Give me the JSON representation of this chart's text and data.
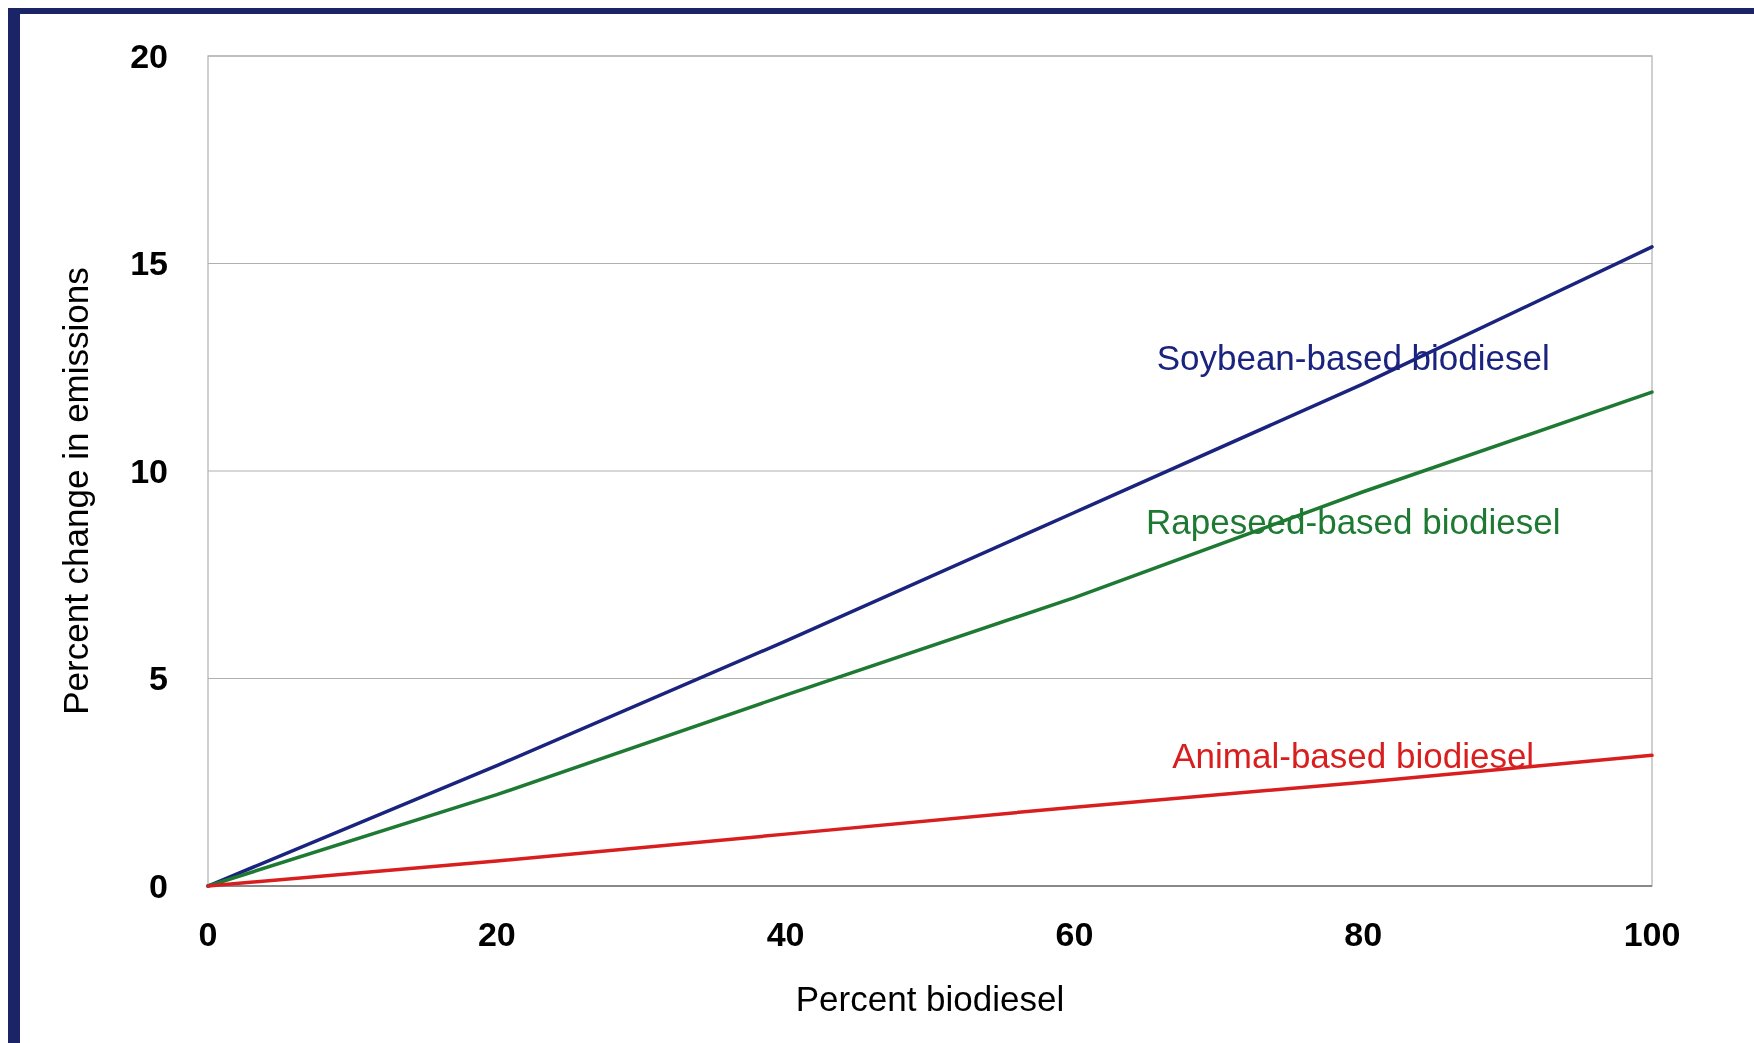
{
  "chart_data": {
    "type": "line",
    "xlabel": "Percent biodiesel",
    "ylabel": "Percent change in emissions",
    "x": [
      0,
      20,
      40,
      60,
      80,
      100
    ],
    "series": [
      {
        "name": "Soybean-based biodiesel",
        "color": "#1a237e",
        "values": [
          0,
          2.9,
          5.9,
          9.0,
          12.1,
          15.4
        ]
      },
      {
        "name": "Rapeseed-based biodiesel",
        "color": "#1e7a32",
        "values": [
          0,
          2.2,
          4.6,
          6.95,
          9.5,
          11.9
        ]
      },
      {
        "name": "Animal-based biodiesel",
        "color": "#d81e1e",
        "values": [
          0,
          0.6,
          1.25,
          1.9,
          2.5,
          3.15
        ]
      }
    ],
    "xlim": [
      0,
      100
    ],
    "xticks": [
      0,
      20,
      40,
      60,
      80,
      100
    ],
    "ylim": [
      0,
      20
    ],
    "yticks": [
      0,
      5,
      10,
      15,
      20
    ],
    "grid": "y",
    "marker": "none",
    "line_style": "solid"
  }
}
